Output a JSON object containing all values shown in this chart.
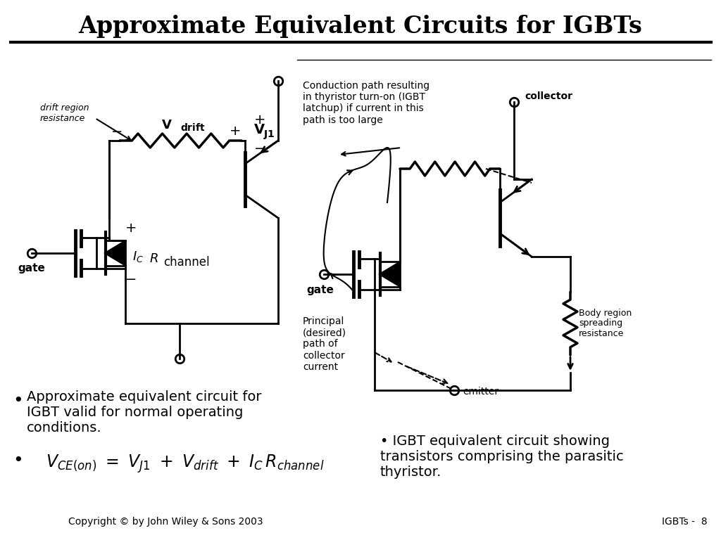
{
  "title": "Approximate Equivalent Circuits for IGBTs",
  "title_fontsize": 24,
  "bg_color": "#ffffff",
  "line_color": "#000000",
  "figsize": [
    10.24,
    7.68
  ],
  "dpi": 100,
  "bullet1_text": "Approximate equivalent circuit for\nIGBT valid for normal operating\nconditions.",
  "right_bullet_text": "• IGBT equivalent circuit showing\ntransistors comprising the parasitic\nthyristor.",
  "copyright": "Copyright © by John Wiley & Sons 2003",
  "page": "IGBTs -  8",
  "drift_region_label": "drift region\nresistance",
  "gate_label": "gate",
  "collector_label": "collector",
  "emitter_label": "emitter",
  "gate2_label": "gate",
  "conduction_text": "Conduction path resulting\nin thyristor turn-on (IGBT\nlatchup) if current in this\npath is too large",
  "principal_text": "Principal\n(desired)\npath of\ncollector\ncurrent",
  "body_region_text": "Body region\nspreading\nresistance"
}
